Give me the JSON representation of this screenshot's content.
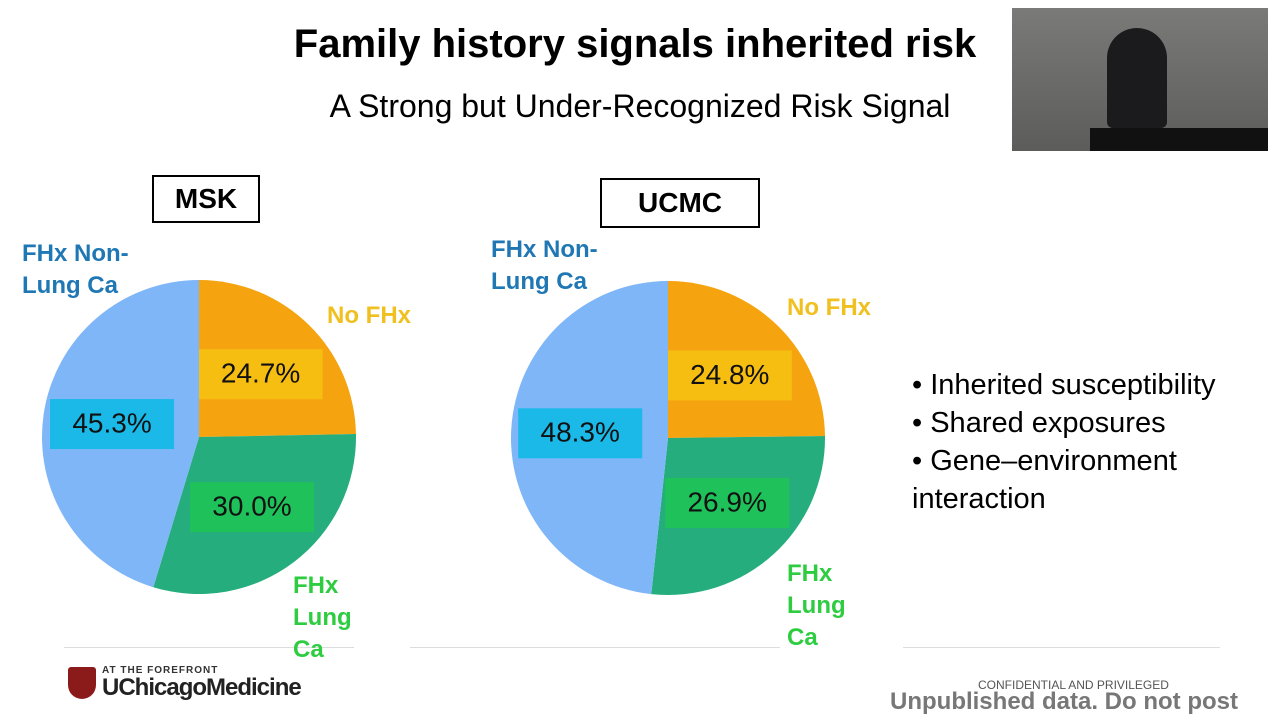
{
  "title": "Family history signals inherited risk",
  "subtitle": "A Strong but Under-Recognized Risk Signal",
  "chart_data": [
    {
      "type": "pie",
      "title": "MSK",
      "categories": [
        "No FHx",
        "FHx Lung Ca",
        "FHx Non-Lung Ca"
      ],
      "values": [
        24.7,
        30.0,
        45.3
      ],
      "value_labels": [
        "24.7%",
        "30.0%",
        "45.3%"
      ],
      "colors": [
        "#f5a30f",
        "#26ad7e",
        "#7fb6f8"
      ]
    },
    {
      "type": "pie",
      "title": "UCMC",
      "categories": [
        "No FHx",
        "FHx Lung Ca",
        "FHx Non-Lung Ca"
      ],
      "values": [
        24.8,
        26.9,
        48.3
      ],
      "value_labels": [
        "24.8%",
        "26.9%",
        "48.3%"
      ],
      "colors": [
        "#f5a30f",
        "#26ad7e",
        "#7fb6f8"
      ]
    }
  ],
  "bullets": [
    "Inherited susceptibility",
    "Shared exposures",
    "Gene–environment interaction"
  ],
  "footer": {
    "tagline": "AT THE FOREFRONT",
    "logo": "UChicagoMedicine",
    "confidential": "CONFIDENTIAL AND PRIVILEGED",
    "notice": "Unpublished data. Do not post"
  }
}
